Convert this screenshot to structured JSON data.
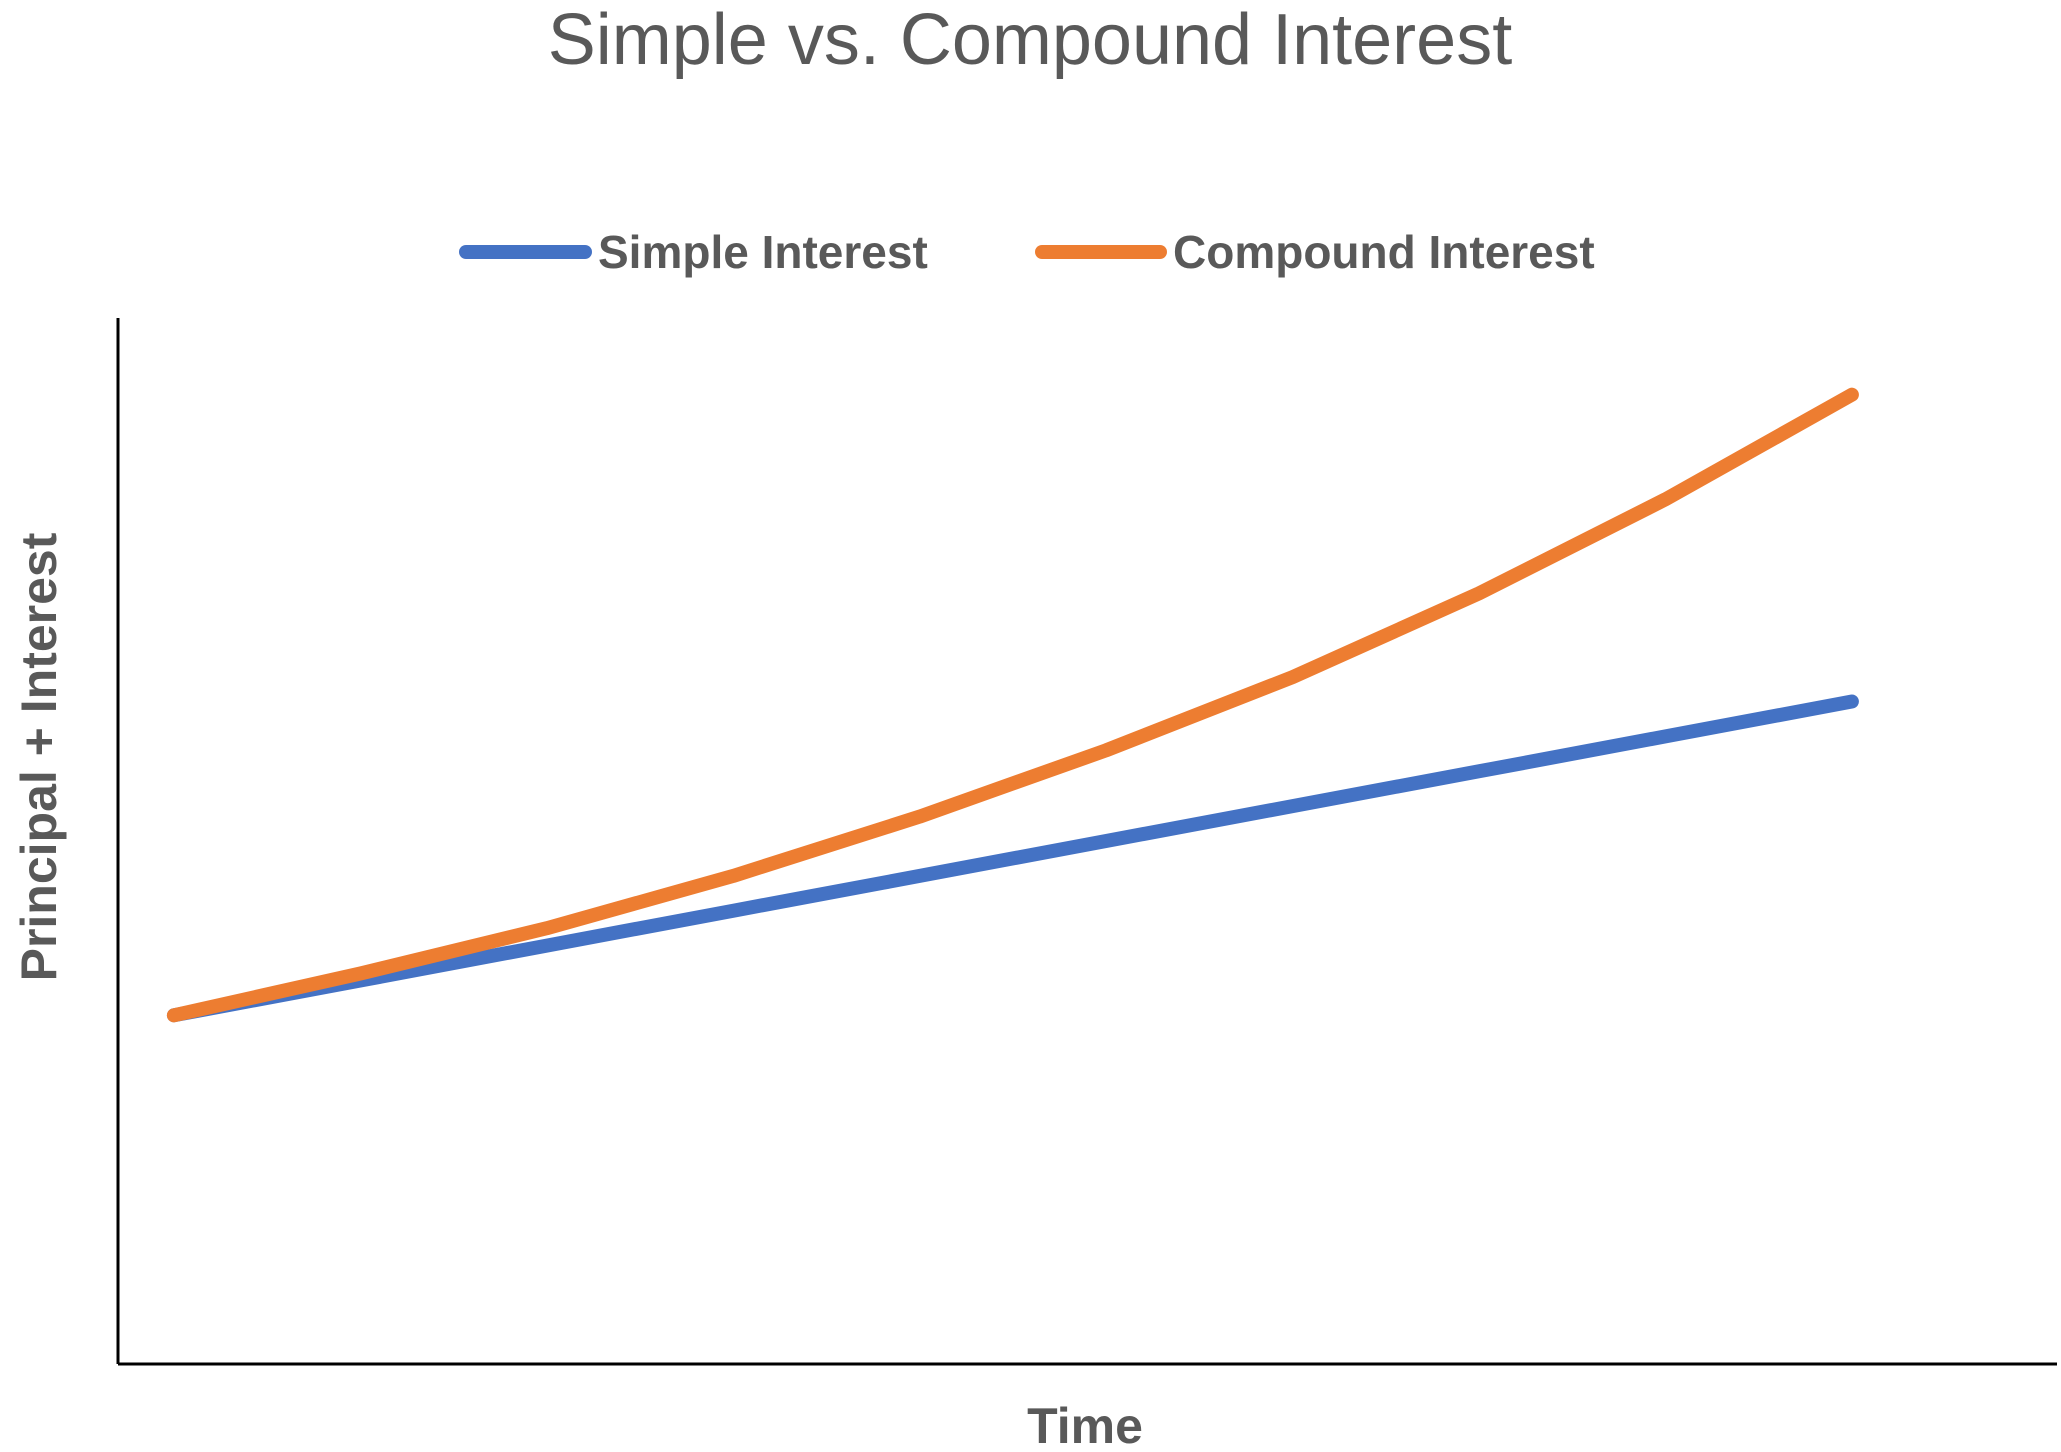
{
  "chart_data": {
    "type": "line",
    "title": "Simple vs. Compound Interest",
    "xlabel": "Time",
    "ylabel": "Principal + Interest",
    "x": [
      0,
      1,
      2,
      3,
      4,
      5,
      6,
      7,
      8,
      9
    ],
    "series": [
      {
        "name": "Simple Interest",
        "color": "#4472C4",
        "values": [
          100,
          110,
          120,
          130,
          140,
          150,
          160,
          170,
          180,
          190
        ]
      },
      {
        "name": "Compound Interest",
        "color": "#ED7D31",
        "values": [
          100,
          112,
          125,
          140,
          157,
          176,
          197,
          221,
          248,
          278
        ]
      }
    ],
    "ylim": [
      0,
      300
    ],
    "xlim": [
      -0.3,
      10.1
    ],
    "grid": false,
    "legend_position": "top"
  }
}
